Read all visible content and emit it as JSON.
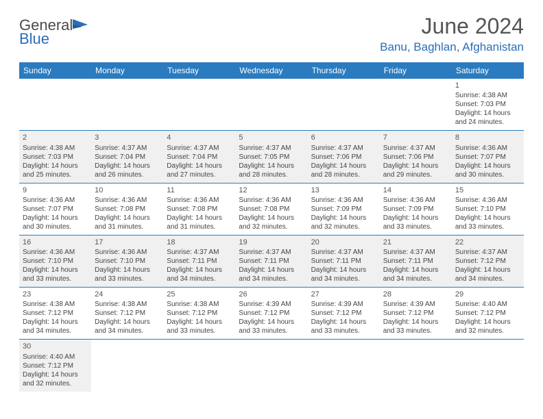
{
  "brand": {
    "name1": "General",
    "name2": "Blue"
  },
  "title": "June 2024",
  "location": "Banu, Baghlan, Afghanistan",
  "colors": {
    "header_bg": "#2a7bbf",
    "brand_blue": "#2a6db8"
  },
  "day_headers": [
    "Sunday",
    "Monday",
    "Tuesday",
    "Wednesday",
    "Thursday",
    "Friday",
    "Saturday"
  ],
  "weeks": [
    [
      null,
      null,
      null,
      null,
      null,
      null,
      {
        "d": "1",
        "sr": "Sunrise: 4:38 AM",
        "ss": "Sunset: 7:03 PM",
        "dl1": "Daylight: 14 hours",
        "dl2": "and 24 minutes."
      }
    ],
    [
      {
        "d": "2",
        "sr": "Sunrise: 4:38 AM",
        "ss": "Sunset: 7:03 PM",
        "dl1": "Daylight: 14 hours",
        "dl2": "and 25 minutes."
      },
      {
        "d": "3",
        "sr": "Sunrise: 4:37 AM",
        "ss": "Sunset: 7:04 PM",
        "dl1": "Daylight: 14 hours",
        "dl2": "and 26 minutes."
      },
      {
        "d": "4",
        "sr": "Sunrise: 4:37 AM",
        "ss": "Sunset: 7:04 PM",
        "dl1": "Daylight: 14 hours",
        "dl2": "and 27 minutes."
      },
      {
        "d": "5",
        "sr": "Sunrise: 4:37 AM",
        "ss": "Sunset: 7:05 PM",
        "dl1": "Daylight: 14 hours",
        "dl2": "and 28 minutes."
      },
      {
        "d": "6",
        "sr": "Sunrise: 4:37 AM",
        "ss": "Sunset: 7:06 PM",
        "dl1": "Daylight: 14 hours",
        "dl2": "and 28 minutes."
      },
      {
        "d": "7",
        "sr": "Sunrise: 4:37 AM",
        "ss": "Sunset: 7:06 PM",
        "dl1": "Daylight: 14 hours",
        "dl2": "and 29 minutes."
      },
      {
        "d": "8",
        "sr": "Sunrise: 4:36 AM",
        "ss": "Sunset: 7:07 PM",
        "dl1": "Daylight: 14 hours",
        "dl2": "and 30 minutes."
      }
    ],
    [
      {
        "d": "9",
        "sr": "Sunrise: 4:36 AM",
        "ss": "Sunset: 7:07 PM",
        "dl1": "Daylight: 14 hours",
        "dl2": "and 30 minutes."
      },
      {
        "d": "10",
        "sr": "Sunrise: 4:36 AM",
        "ss": "Sunset: 7:08 PM",
        "dl1": "Daylight: 14 hours",
        "dl2": "and 31 minutes."
      },
      {
        "d": "11",
        "sr": "Sunrise: 4:36 AM",
        "ss": "Sunset: 7:08 PM",
        "dl1": "Daylight: 14 hours",
        "dl2": "and 31 minutes."
      },
      {
        "d": "12",
        "sr": "Sunrise: 4:36 AM",
        "ss": "Sunset: 7:08 PM",
        "dl1": "Daylight: 14 hours",
        "dl2": "and 32 minutes."
      },
      {
        "d": "13",
        "sr": "Sunrise: 4:36 AM",
        "ss": "Sunset: 7:09 PM",
        "dl1": "Daylight: 14 hours",
        "dl2": "and 32 minutes."
      },
      {
        "d": "14",
        "sr": "Sunrise: 4:36 AM",
        "ss": "Sunset: 7:09 PM",
        "dl1": "Daylight: 14 hours",
        "dl2": "and 33 minutes."
      },
      {
        "d": "15",
        "sr": "Sunrise: 4:36 AM",
        "ss": "Sunset: 7:10 PM",
        "dl1": "Daylight: 14 hours",
        "dl2": "and 33 minutes."
      }
    ],
    [
      {
        "d": "16",
        "sr": "Sunrise: 4:36 AM",
        "ss": "Sunset: 7:10 PM",
        "dl1": "Daylight: 14 hours",
        "dl2": "and 33 minutes."
      },
      {
        "d": "17",
        "sr": "Sunrise: 4:36 AM",
        "ss": "Sunset: 7:10 PM",
        "dl1": "Daylight: 14 hours",
        "dl2": "and 33 minutes."
      },
      {
        "d": "18",
        "sr": "Sunrise: 4:37 AM",
        "ss": "Sunset: 7:11 PM",
        "dl1": "Daylight: 14 hours",
        "dl2": "and 34 minutes."
      },
      {
        "d": "19",
        "sr": "Sunrise: 4:37 AM",
        "ss": "Sunset: 7:11 PM",
        "dl1": "Daylight: 14 hours",
        "dl2": "and 34 minutes."
      },
      {
        "d": "20",
        "sr": "Sunrise: 4:37 AM",
        "ss": "Sunset: 7:11 PM",
        "dl1": "Daylight: 14 hours",
        "dl2": "and 34 minutes."
      },
      {
        "d": "21",
        "sr": "Sunrise: 4:37 AM",
        "ss": "Sunset: 7:11 PM",
        "dl1": "Daylight: 14 hours",
        "dl2": "and 34 minutes."
      },
      {
        "d": "22",
        "sr": "Sunrise: 4:37 AM",
        "ss": "Sunset: 7:12 PM",
        "dl1": "Daylight: 14 hours",
        "dl2": "and 34 minutes."
      }
    ],
    [
      {
        "d": "23",
        "sr": "Sunrise: 4:38 AM",
        "ss": "Sunset: 7:12 PM",
        "dl1": "Daylight: 14 hours",
        "dl2": "and 34 minutes."
      },
      {
        "d": "24",
        "sr": "Sunrise: 4:38 AM",
        "ss": "Sunset: 7:12 PM",
        "dl1": "Daylight: 14 hours",
        "dl2": "and 34 minutes."
      },
      {
        "d": "25",
        "sr": "Sunrise: 4:38 AM",
        "ss": "Sunset: 7:12 PM",
        "dl1": "Daylight: 14 hours",
        "dl2": "and 33 minutes."
      },
      {
        "d": "26",
        "sr": "Sunrise: 4:39 AM",
        "ss": "Sunset: 7:12 PM",
        "dl1": "Daylight: 14 hours",
        "dl2": "and 33 minutes."
      },
      {
        "d": "27",
        "sr": "Sunrise: 4:39 AM",
        "ss": "Sunset: 7:12 PM",
        "dl1": "Daylight: 14 hours",
        "dl2": "and 33 minutes."
      },
      {
        "d": "28",
        "sr": "Sunrise: 4:39 AM",
        "ss": "Sunset: 7:12 PM",
        "dl1": "Daylight: 14 hours",
        "dl2": "and 33 minutes."
      },
      {
        "d": "29",
        "sr": "Sunrise: 4:40 AM",
        "ss": "Sunset: 7:12 PM",
        "dl1": "Daylight: 14 hours",
        "dl2": "and 32 minutes."
      }
    ],
    [
      {
        "d": "30",
        "sr": "Sunrise: 4:40 AM",
        "ss": "Sunset: 7:12 PM",
        "dl1": "Daylight: 14 hours",
        "dl2": "and 32 minutes."
      },
      null,
      null,
      null,
      null,
      null,
      null
    ]
  ]
}
